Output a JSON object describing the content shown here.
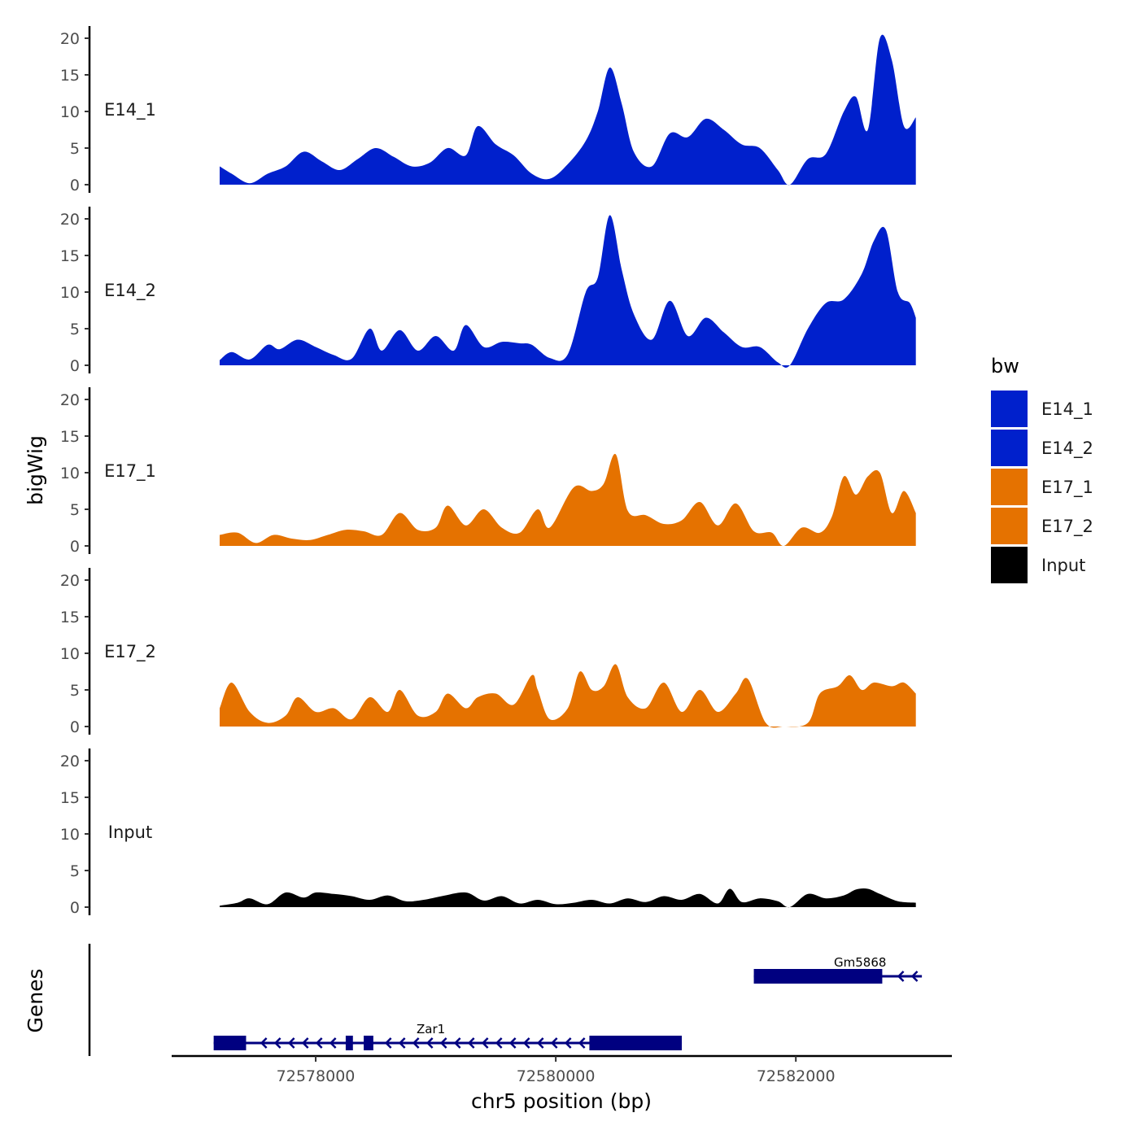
{
  "chart_data": {
    "type": "area",
    "title": "",
    "xlabel": "chr5 position (bp)",
    "ylabel": "bigWig",
    "genes_axis_label": "Genes",
    "xlim": [
      72576800,
      72583300
    ],
    "ylim": [
      0,
      21
    ],
    "xticks": [
      72578000,
      72580000,
      72582000
    ],
    "xtick_labels": [
      "72578000",
      "72580000",
      "72582000"
    ],
    "yticks": [
      0,
      5,
      10,
      15,
      20
    ],
    "ytick_labels": [
      "0",
      "5",
      "10",
      "15",
      "20"
    ],
    "legend": {
      "title": "bw",
      "position": "right",
      "entries": [
        {
          "label": "E14_1",
          "color": "#0020CC"
        },
        {
          "label": "E14_2",
          "color": "#0020CC"
        },
        {
          "label": "E17_1",
          "color": "#E57200"
        },
        {
          "label": "E17_2",
          "color": "#E57200"
        },
        {
          "label": "Input",
          "color": "#000000"
        }
      ]
    },
    "series": [
      {
        "name": "E14_1",
        "color": "#0020CC",
        "x": [
          72577200,
          72577300,
          72577450,
          72577600,
          72577750,
          72577900,
          72578050,
          72578200,
          72578350,
          72578500,
          72578650,
          72578800,
          72578950,
          72579100,
          72579250,
          72579350,
          72579500,
          72579650,
          72579800,
          72579950,
          72580100,
          72580250,
          72580350,
          72580450,
          72580550,
          72580650,
          72580800,
          72580950,
          72581100,
          72581250,
          72581400,
          72581550,
          72581700,
          72581850,
          72581950,
          72582100,
          72582250,
          72582400,
          72582500,
          72582600,
          72582700,
          72582800,
          72582900,
          72583000
        ],
        "y": [
          2.5,
          1.5,
          0.2,
          1.5,
          2.5,
          4.5,
          3.2,
          2.0,
          3.5,
          5.0,
          3.8,
          2.5,
          3.0,
          5.0,
          4.0,
          8.0,
          5.5,
          4.0,
          1.5,
          0.8,
          2.8,
          6.0,
          10.0,
          16.0,
          11.0,
          4.5,
          2.5,
          7.0,
          6.5,
          9.0,
          7.5,
          5.5,
          5.0,
          2.0,
          0.0,
          3.5,
          4.2,
          10.0,
          12.0,
          7.5,
          20.0,
          17.0,
          8.0,
          9.2
        ]
      },
      {
        "name": "E14_2",
        "color": "#0020CC",
        "x": [
          72577200,
          72577300,
          72577450,
          72577600,
          72577700,
          72577850,
          72578000,
          72578150,
          72578300,
          72578450,
          72578550,
          72578700,
          72578850,
          72579000,
          72579150,
          72579250,
          72579400,
          72579550,
          72579700,
          72579800,
          72579950,
          72580100,
          72580250,
          72580350,
          72580450,
          72580550,
          72580650,
          72580800,
          72580950,
          72581100,
          72581250,
          72581400,
          72581550,
          72581700,
          72581850,
          72581950,
          72582100,
          72582250,
          72582400,
          72582550,
          72582650,
          72582750,
          72582850,
          72582950,
          72583000
        ],
        "y": [
          0.7,
          1.8,
          0.8,
          2.8,
          2.2,
          3.5,
          2.5,
          1.4,
          0.9,
          5.0,
          2.0,
          4.8,
          2.0,
          4.0,
          2.0,
          5.5,
          2.5,
          3.2,
          3.0,
          2.8,
          1.0,
          1.5,
          10.0,
          12.0,
          20.5,
          13.0,
          7.0,
          3.5,
          8.8,
          4.0,
          6.5,
          4.5,
          2.5,
          2.5,
          0.4,
          0.0,
          5.0,
          8.5,
          9.0,
          12.5,
          17.0,
          18.5,
          10.0,
          8.5,
          6.5
        ]
      },
      {
        "name": "E17_1",
        "color": "#E57200",
        "x": [
          72577200,
          72577350,
          72577500,
          72577650,
          72577800,
          72577950,
          72578100,
          72578250,
          72578400,
          72578550,
          72578700,
          72578850,
          72579000,
          72579100,
          72579250,
          72579400,
          72579550,
          72579700,
          72579850,
          72579950,
          72580150,
          72580300,
          72580400,
          72580500,
          72580600,
          72580750,
          72580900,
          72581050,
          72581200,
          72581350,
          72581500,
          72581650,
          72581800,
          72581900,
          72582050,
          72582200,
          72582300,
          72582400,
          72582500,
          72582600,
          72582700,
          72582800,
          72582900,
          72583000
        ],
        "y": [
          1.5,
          1.8,
          0.4,
          1.5,
          1.0,
          0.8,
          1.5,
          2.2,
          2.0,
          1.5,
          4.5,
          2.2,
          2.5,
          5.5,
          2.8,
          5.0,
          2.5,
          1.8,
          5.0,
          2.5,
          8.0,
          7.5,
          8.5,
          12.5,
          4.8,
          4.2,
          3.0,
          3.5,
          6.0,
          2.8,
          5.8,
          2.0,
          1.8,
          0.0,
          2.5,
          1.8,
          4.0,
          9.5,
          7.0,
          9.5,
          10.0,
          4.5,
          7.5,
          4.5
        ]
      },
      {
        "name": "E17_2",
        "color": "#E57200",
        "x": [
          72577200,
          72577300,
          72577450,
          72577600,
          72577750,
          72577850,
          72578000,
          72578150,
          72578300,
          72578450,
          72578600,
          72578700,
          72578850,
          72579000,
          72579100,
          72579250,
          72579350,
          72579500,
          72579650,
          72579800,
          72579850,
          72579950,
          72580100,
          72580200,
          72580300,
          72580400,
          72580500,
          72580600,
          72580750,
          72580900,
          72581050,
          72581200,
          72581350,
          72581500,
          72581600,
          72581750,
          72581900,
          72582100,
          72582200,
          72582350,
          72582450,
          72582550,
          72582650,
          72582800,
          72582900,
          72583000
        ],
        "y": [
          2.5,
          6.0,
          2.0,
          0.5,
          1.5,
          4.0,
          2.0,
          2.5,
          1.0,
          4.0,
          2.0,
          5.0,
          1.5,
          2.0,
          4.5,
          2.5,
          4.0,
          4.5,
          3.0,
          7.0,
          5.0,
          1.0,
          2.5,
          7.5,
          5.0,
          5.5,
          8.5,
          4.0,
          2.5,
          6.0,
          2.0,
          5.0,
          2.0,
          4.5,
          6.5,
          0.5,
          0.0,
          0.5,
          4.5,
          5.5,
          7.0,
          5.0,
          6.0,
          5.5,
          6.0,
          4.5
        ]
      },
      {
        "name": "Input",
        "color": "#000000",
        "x": [
          72577200,
          72577350,
          72577450,
          72577600,
          72577750,
          72577900,
          72578000,
          72578150,
          72578300,
          72578450,
          72578600,
          72578750,
          72578900,
          72579050,
          72579250,
          72579400,
          72579550,
          72579700,
          72579850,
          72580000,
          72580150,
          72580300,
          72580450,
          72580600,
          72580750,
          72580900,
          72581050,
          72581200,
          72581350,
          72581450,
          72581550,
          72581700,
          72581850,
          72581950,
          72582100,
          72582250,
          72582400,
          72582500,
          72582600,
          72582700,
          72582850,
          72583000
        ],
        "y": [
          0.2,
          0.6,
          1.2,
          0.4,
          2.0,
          1.3,
          2.0,
          1.8,
          1.5,
          1.0,
          1.6,
          0.8,
          1.0,
          1.5,
          2.0,
          0.9,
          1.5,
          0.5,
          1.0,
          0.4,
          0.6,
          1.0,
          0.5,
          1.2,
          0.7,
          1.5,
          1.0,
          1.8,
          0.5,
          2.5,
          0.7,
          1.2,
          0.8,
          0.0,
          1.8,
          1.2,
          1.6,
          2.4,
          2.5,
          1.8,
          0.8,
          0.6
        ]
      }
    ],
    "genes": [
      {
        "name": "Zar1",
        "strand": "-",
        "row": 2,
        "start": 72577150,
        "end": 72581050,
        "exons": [
          [
            72577150,
            72577420
          ],
          [
            72578250,
            72578310
          ],
          [
            72578400,
            72578480
          ],
          [
            72580280,
            72581050
          ]
        ]
      },
      {
        "name": "Gm5868",
        "strand": "-",
        "row": 1,
        "start": 72581650,
        "end": 72583050,
        "exons": [
          [
            72581650,
            72582720
          ]
        ]
      }
    ]
  }
}
